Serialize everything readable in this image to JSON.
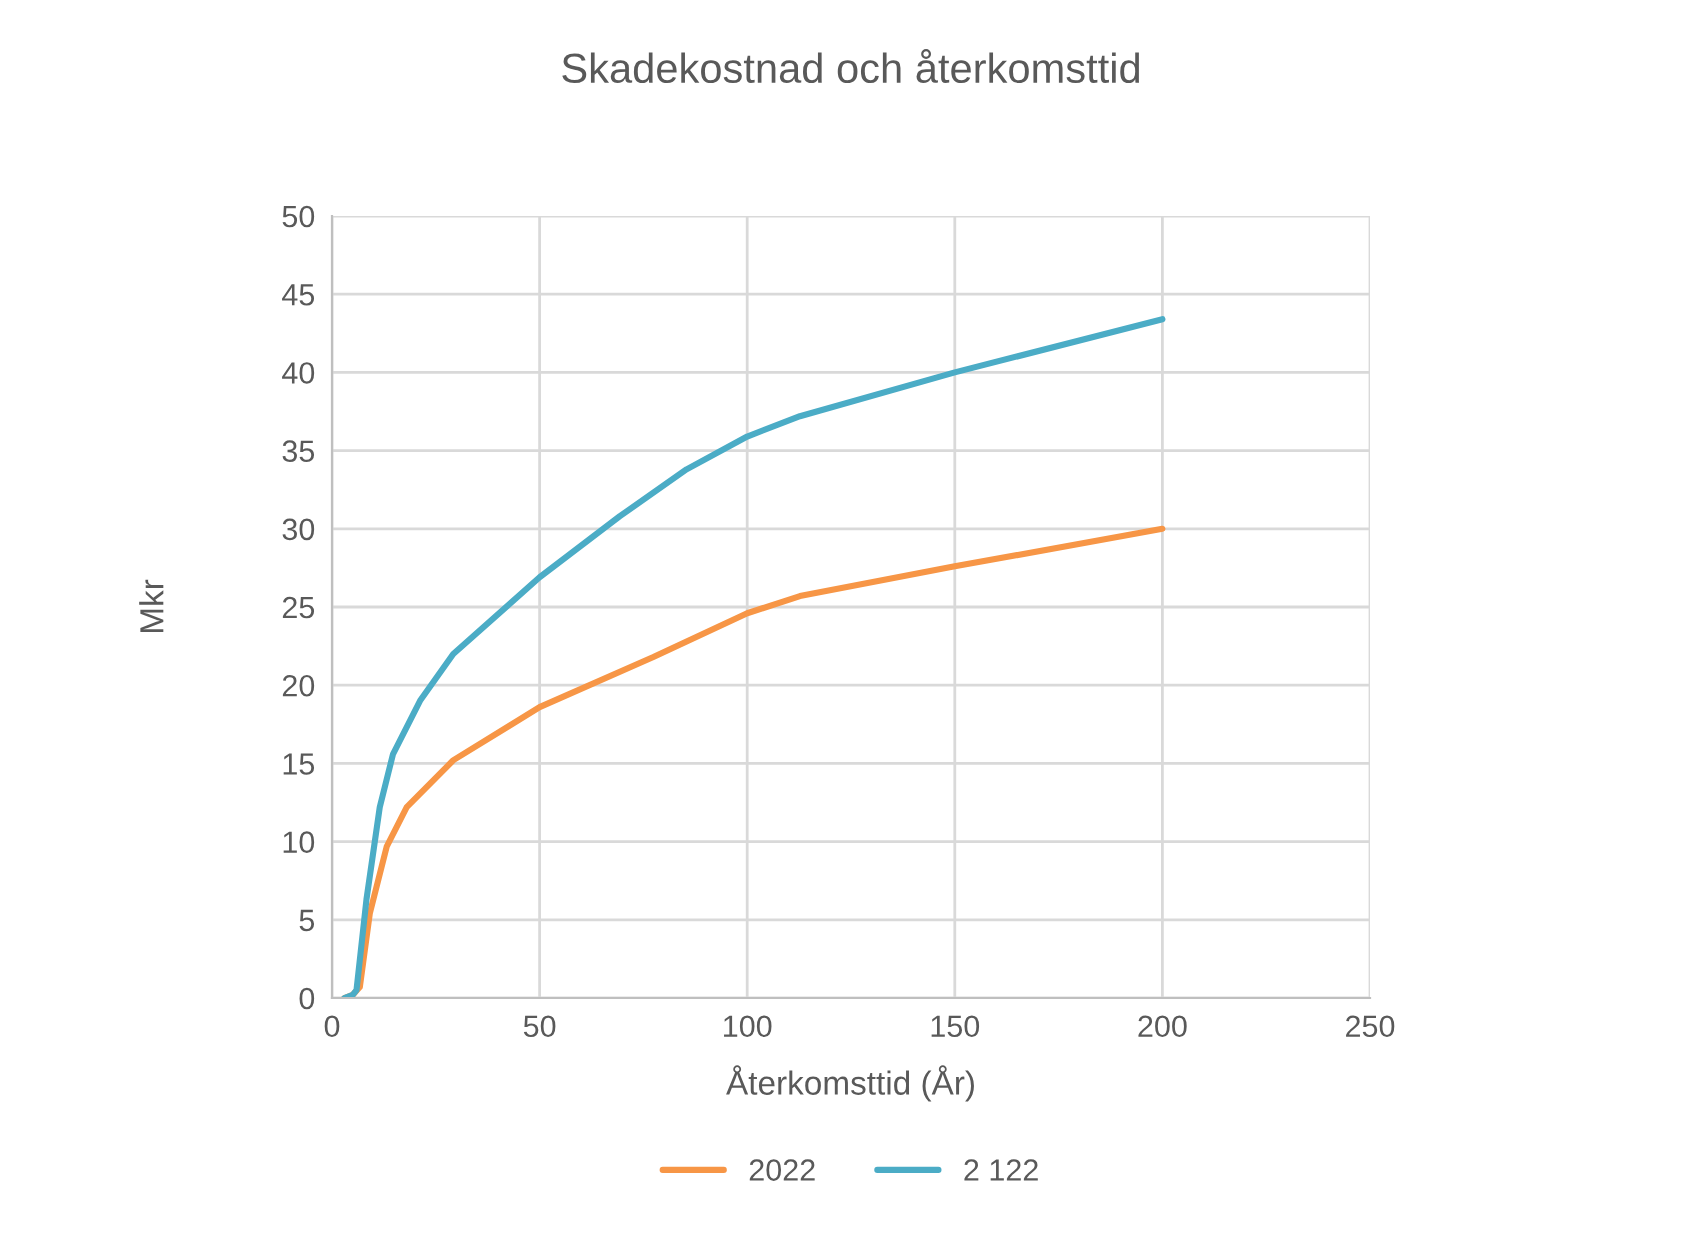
{
  "chart_data": {
    "type": "line",
    "title": "Skadekostnad och återkomsttid",
    "xlabel": "Återkomsttid (År)",
    "ylabel": "Mkr",
    "xlim": [
      0,
      250
    ],
    "xticks": [
      0,
      50,
      100,
      150,
      200,
      250
    ],
    "ylim": [
      0,
      50
    ],
    "yticks": [
      0,
      5,
      10,
      15,
      20,
      25,
      30,
      35,
      40,
      45,
      50
    ],
    "grid": true,
    "legend": "bottom",
    "marker": "none",
    "line_style": "solid",
    "series": [
      {
        "name": "2022",
        "color": "#f79646",
        "x": [
          3,
          5,
          6.7,
          9.1,
          13.2,
          18,
          29.2,
          50,
          77.4,
          100,
          112.7,
          150,
          200
        ],
        "values": [
          0,
          0.2,
          0.7,
          5.4,
          9.7,
          12.2,
          15.2,
          18.6,
          21.8,
          24.6,
          25.7,
          27.6,
          30
        ]
      },
      {
        "name": "2 122",
        "color": "#4bacc6",
        "x": [
          3,
          5,
          5.9,
          8.3,
          11.5,
          14.7,
          21.2,
          29.2,
          50,
          69.3,
          85.4,
          100,
          112.7,
          150,
          200
        ],
        "values": [
          0,
          0.2,
          0.5,
          6.3,
          12.2,
          15.6,
          19,
          22,
          26.9,
          30.8,
          33.8,
          35.9,
          37.2,
          40,
          43.4
        ]
      }
    ]
  }
}
